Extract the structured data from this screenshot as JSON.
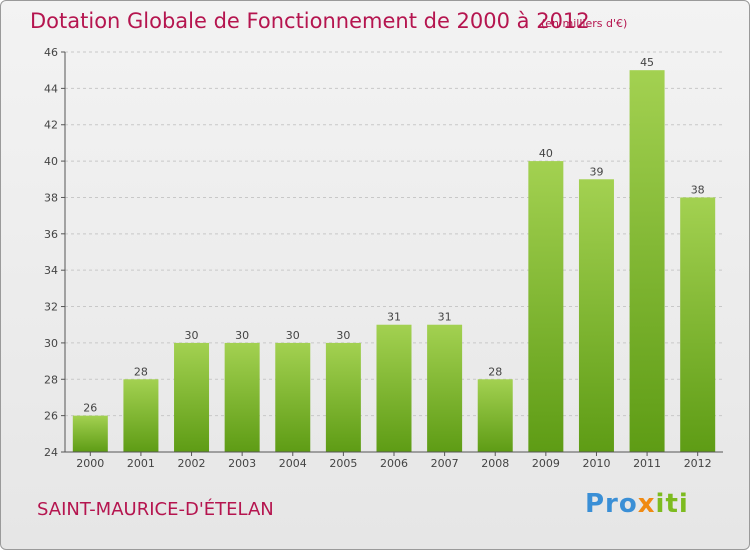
{
  "chart_data": {
    "type": "bar",
    "title": "Dotation Globale de Fonctionnement de 2000 à 2012",
    "subtitle": "(en milliers d'€)",
    "categories": [
      "2000",
      "2001",
      "2002",
      "2003",
      "2004",
      "2005",
      "2006",
      "2007",
      "2008",
      "2009",
      "2010",
      "2011",
      "2012"
    ],
    "values": [
      26,
      28,
      30,
      30,
      30,
      30,
      31,
      31,
      28,
      40,
      39,
      45,
      38
    ],
    "ylim": [
      24,
      46
    ],
    "yticks": [
      24,
      26,
      28,
      30,
      32,
      34,
      36,
      38,
      40,
      42,
      44,
      46
    ],
    "grid": true,
    "xlabel": "",
    "ylabel": ""
  },
  "footer": {
    "commune": "SAINT-MAURICE-D'ÉTELAN",
    "logo": {
      "part1": "Pro",
      "part2": "x",
      "part3": "iti"
    }
  },
  "colors": {
    "title": "#b5154f",
    "bar_light": "#a3d151",
    "bar_dark": "#5e9c15"
  }
}
